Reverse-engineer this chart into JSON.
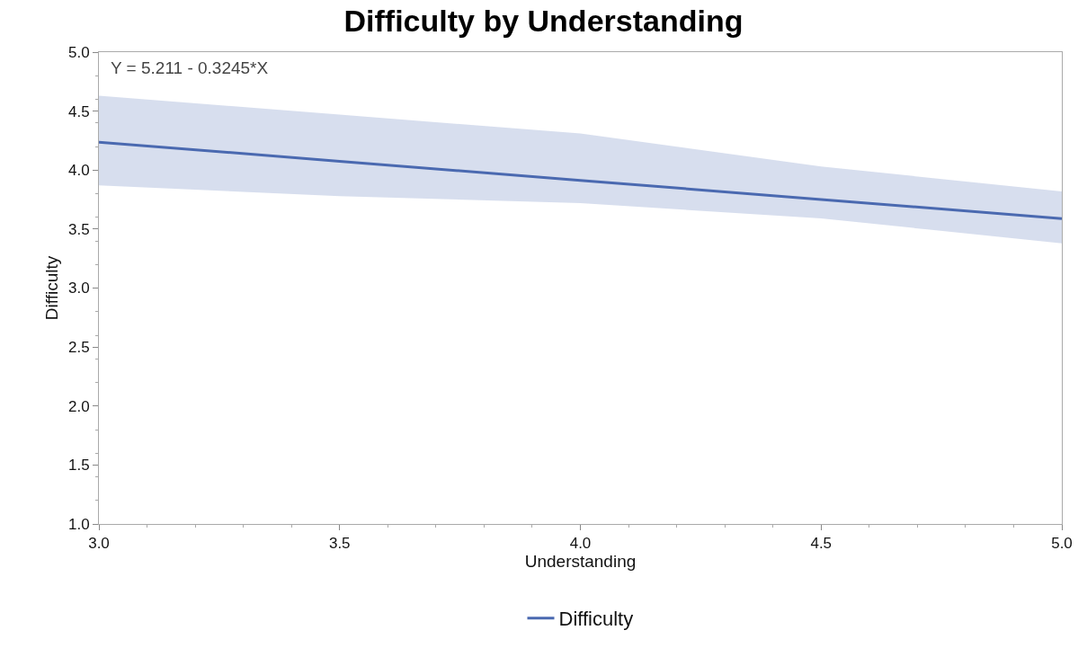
{
  "chart_data": {
    "type": "line",
    "title": "Difficulty by Understanding",
    "xlabel": "Understanding",
    "ylabel": "Difficulty",
    "x": [
      3.0,
      3.5,
      4.0,
      4.5,
      5.0
    ],
    "series": [
      {
        "name": "Difficulty",
        "color": "#4a69b0",
        "values": [
          4.237,
          4.075,
          3.913,
          3.751,
          3.589
        ],
        "lower": [
          3.87,
          3.78,
          3.72,
          3.59,
          3.38
        ],
        "upper": [
          4.63,
          4.47,
          4.31,
          4.03,
          3.82
        ]
      }
    ],
    "annotations": [
      "Y = 5.211 - 0.3245*X"
    ],
    "xlim": [
      3.0,
      5.0
    ],
    "xticks": [
      {
        "value": 3,
        "label": "3.0"
      },
      {
        "value": 3.5,
        "label": "3.5"
      },
      {
        "value": 4,
        "label": "4.0"
      },
      {
        "value": 4.5,
        "label": "4.5"
      },
      {
        "value": 5,
        "label": "5.0"
      }
    ],
    "ylim": [
      1.0,
      5.0
    ],
    "yticks": [
      {
        "value": 1,
        "label": "1.0"
      },
      {
        "value": 1.5,
        "label": "1.5"
      },
      {
        "value": 2,
        "label": "2.0"
      },
      {
        "value": 2.5,
        "label": "2.5"
      },
      {
        "value": 3,
        "label": "3.0"
      },
      {
        "value": 3.5,
        "label": "3.5"
      },
      {
        "value": 4,
        "label": "4.0"
      },
      {
        "value": 4.5,
        "label": "4.5"
      },
      {
        "value": 5,
        "label": "5.0"
      }
    ],
    "grid": false,
    "legend": "bottom",
    "marker": "none",
    "line_style": "solid"
  }
}
